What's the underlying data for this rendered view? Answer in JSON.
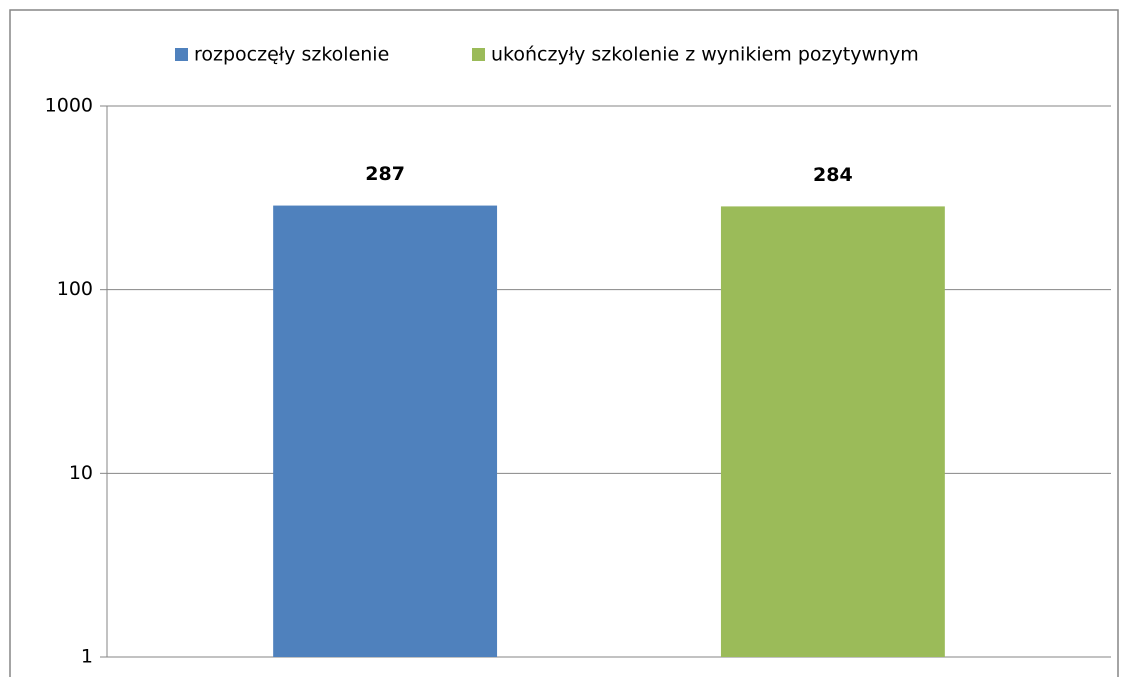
{
  "chart_data": {
    "type": "bar",
    "categories": [
      null
    ],
    "series": [
      {
        "name": "rozpoczęły szkolenie",
        "color": "#4f81bd",
        "values": [
          287
        ]
      },
      {
        "name": "ukończyły szkolenie z wynikiem pozytywnym",
        "color": "#9bbb59",
        "values": [
          284
        ]
      }
    ],
    "ylim": [
      1,
      1000
    ],
    "yticks": [
      1,
      10,
      100,
      1000
    ],
    "log_scale": true,
    "grid": true,
    "legend": "top"
  }
}
